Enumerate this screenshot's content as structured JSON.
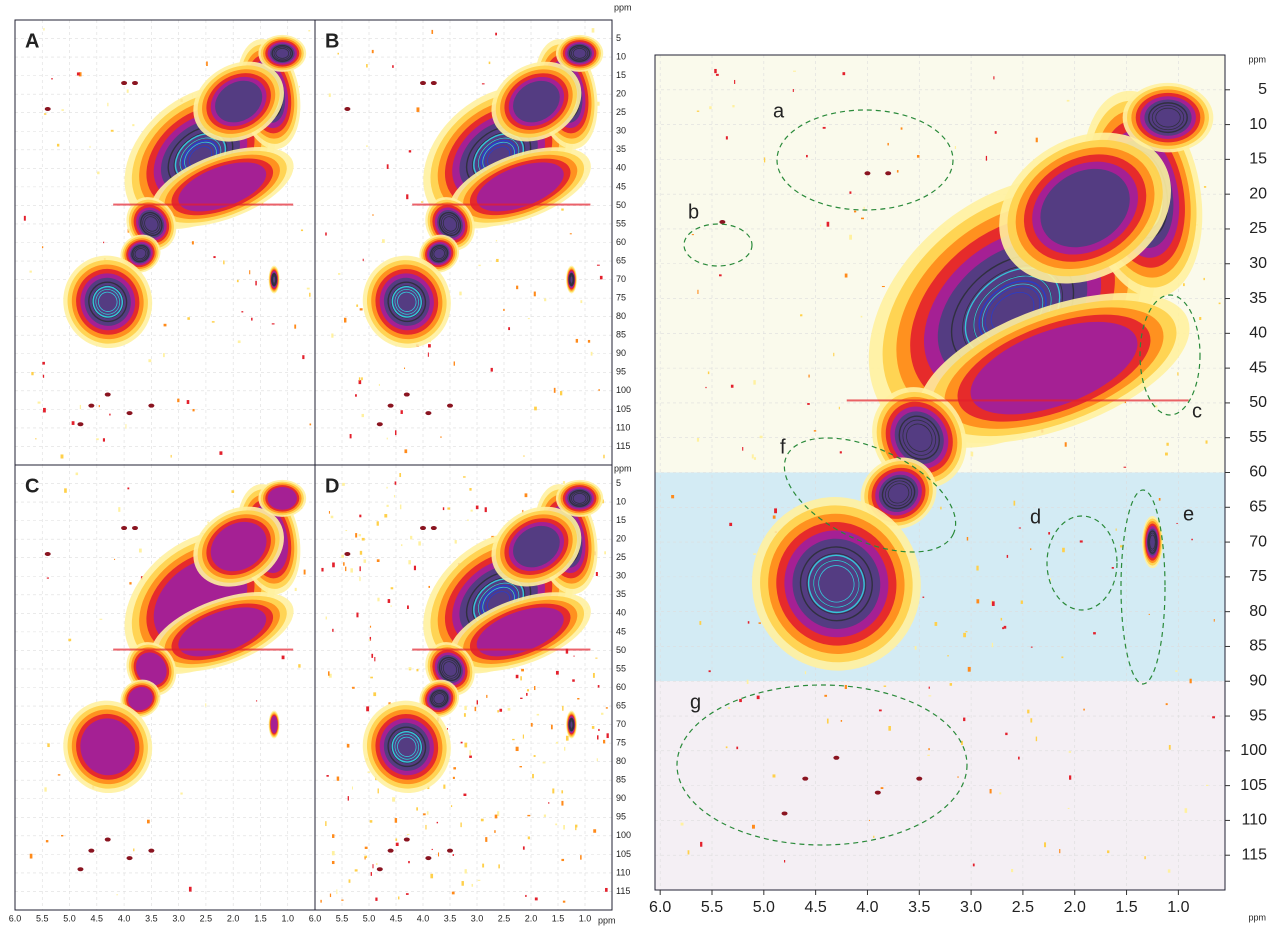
{
  "figure": {
    "panels": [
      {
        "label": "A"
      },
      {
        "label": "B"
      },
      {
        "label": "C"
      },
      {
        "label": "D"
      }
    ],
    "small_axes": {
      "unit": "ppm",
      "xlim": [
        6.0,
        0.5
      ],
      "ylim": [
        0,
        120
      ],
      "xticks": [
        {
          "value": 6,
          "label": "6.0"
        },
        5.5,
        {
          "value": 5,
          "label": "5.0"
        },
        4.5,
        {
          "value": 4,
          "label": "4.0"
        },
        3.5,
        {
          "value": 3,
          "label": "3.0"
        },
        2.5,
        {
          "value": 2,
          "label": "2.0"
        },
        1.5,
        {
          "value": 1,
          "label": "1.0"
        }
      ],
      "yticks": [
        5,
        10,
        15,
        20,
        25,
        30,
        35,
        40,
        45,
        50,
        55,
        60,
        65,
        70,
        75,
        80,
        85,
        90,
        95,
        100,
        105,
        110,
        115
      ]
    },
    "large_panel": {
      "unit": "ppm",
      "xlim": [
        6.05,
        0.55
      ],
      "ylim": [
        0,
        120
      ],
      "xticks": [
        {
          "value": 6,
          "label": "6.0"
        },
        5.5,
        {
          "value": 5,
          "label": "5.0"
        },
        4.5,
        {
          "value": 4,
          "label": "4.0"
        },
        3.5,
        {
          "value": 3,
          "label": "3.0"
        },
        2.5,
        {
          "value": 2,
          "label": "2.0"
        },
        1.5,
        {
          "value": 1,
          "label": "1.0"
        }
      ],
      "yticks": [
        5,
        10,
        15,
        20,
        25,
        30,
        35,
        40,
        45,
        50,
        55,
        60,
        65,
        70,
        75,
        80,
        85,
        90,
        95,
        100,
        105,
        110,
        115
      ],
      "regions": [
        {
          "from": 0,
          "to": 60,
          "color": "#fafaec"
        },
        {
          "from": 60,
          "to": 90,
          "color": "#d3ebf4"
        },
        {
          "from": 90,
          "to": 120,
          "color": "#f4eff4"
        }
      ],
      "annotations": [
        "a",
        "b",
        "c",
        "d",
        "e",
        "f",
        "g"
      ]
    }
  }
}
